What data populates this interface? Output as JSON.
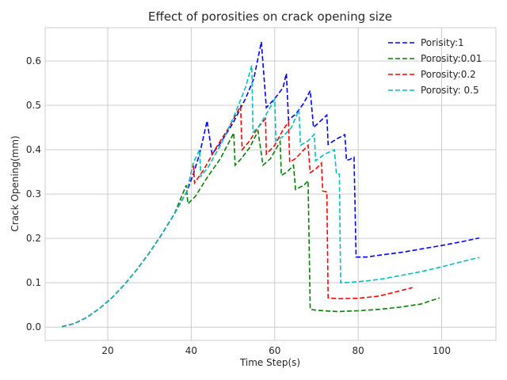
{
  "chart_data": {
    "type": "line",
    "title": "Effect of porosities on crack opening size",
    "xlabel": "Time Step(s)",
    "ylabel": "Crack Opening(mm)",
    "xlim": [
      5,
      113
    ],
    "ylim": [
      -0.03,
      0.675
    ],
    "xticks": [
      20,
      40,
      60,
      80,
      100
    ],
    "yticks": [
      0.0,
      0.1,
      0.2,
      0.3,
      0.4,
      0.5,
      0.6
    ],
    "grid": true,
    "legend_position": "top-right",
    "series": [
      {
        "name": "Porisity:1",
        "color": "#0000ff",
        "points": [
          [
            9,
            0.001
          ],
          [
            12,
            0.008
          ],
          [
            15,
            0.022
          ],
          [
            18,
            0.042
          ],
          [
            21,
            0.066
          ],
          [
            24,
            0.096
          ],
          [
            27,
            0.13
          ],
          [
            30,
            0.168
          ],
          [
            33,
            0.21
          ],
          [
            36,
            0.256
          ],
          [
            39,
            0.306
          ],
          [
            40.5,
            0.345
          ],
          [
            42,
            0.39
          ],
          [
            43.8,
            0.465
          ],
          [
            45,
            0.39
          ],
          [
            47,
            0.415
          ],
          [
            50,
            0.46
          ],
          [
            53,
            0.515
          ],
          [
            55,
            0.56
          ],
          [
            56.8,
            0.643
          ],
          [
            58,
            0.495
          ],
          [
            60,
            0.515
          ],
          [
            62,
            0.54
          ],
          [
            62.8,
            0.572
          ],
          [
            63.3,
            0.467
          ],
          [
            65,
            0.48
          ],
          [
            67,
            0.505
          ],
          [
            68.5,
            0.533
          ],
          [
            69.3,
            0.45
          ],
          [
            71,
            0.465
          ],
          [
            72.5,
            0.478
          ],
          [
            72.8,
            0.412
          ],
          [
            75,
            0.425
          ],
          [
            76.8,
            0.434
          ],
          [
            77.2,
            0.376
          ],
          [
            78,
            0.378
          ],
          [
            79,
            0.383
          ],
          [
            79.5,
            0.158
          ],
          [
            82,
            0.158
          ],
          [
            85,
            0.162
          ],
          [
            90,
            0.168
          ],
          [
            95,
            0.176
          ],
          [
            100,
            0.184
          ],
          [
            105,
            0.193
          ],
          [
            109,
            0.201
          ]
        ]
      },
      {
        "name": "Porosity:0.01",
        "color": "#008000",
        "points": [
          [
            9,
            0.001
          ],
          [
            12,
            0.008
          ],
          [
            15,
            0.022
          ],
          [
            18,
            0.042
          ],
          [
            21,
            0.066
          ],
          [
            24,
            0.096
          ],
          [
            27,
            0.13
          ],
          [
            30,
            0.168
          ],
          [
            33,
            0.21
          ],
          [
            36,
            0.256
          ],
          [
            38.8,
            0.32
          ],
          [
            39.2,
            0.278
          ],
          [
            41,
            0.295
          ],
          [
            44,
            0.34
          ],
          [
            47,
            0.38
          ],
          [
            50.2,
            0.438
          ],
          [
            50.5,
            0.365
          ],
          [
            52,
            0.38
          ],
          [
            54,
            0.405
          ],
          [
            56,
            0.442
          ],
          [
            57.2,
            0.365
          ],
          [
            59,
            0.38
          ],
          [
            61.3,
            0.418
          ],
          [
            61.6,
            0.342
          ],
          [
            63,
            0.35
          ],
          [
            64.5,
            0.365
          ],
          [
            65,
            0.31
          ],
          [
            67,
            0.32
          ],
          [
            68,
            0.33
          ],
          [
            68.5,
            0.04
          ],
          [
            70,
            0.038
          ],
          [
            75,
            0.035
          ],
          [
            80,
            0.037
          ],
          [
            85,
            0.04
          ],
          [
            90,
            0.045
          ],
          [
            95,
            0.052
          ],
          [
            99.5,
            0.066
          ]
        ]
      },
      {
        "name": "Porosity:0.2",
        "color": "#ff0000",
        "points": [
          [
            9,
            0.001
          ],
          [
            12,
            0.008
          ],
          [
            15,
            0.022
          ],
          [
            18,
            0.042
          ],
          [
            21,
            0.066
          ],
          [
            24,
            0.096
          ],
          [
            27,
            0.13
          ],
          [
            30,
            0.168
          ],
          [
            33,
            0.21
          ],
          [
            36,
            0.256
          ],
          [
            39,
            0.306
          ],
          [
            40.5,
            0.37
          ],
          [
            40.8,
            0.325
          ],
          [
            43,
            0.355
          ],
          [
            46,
            0.405
          ],
          [
            49,
            0.45
          ],
          [
            51.8,
            0.498
          ],
          [
            52.2,
            0.4
          ],
          [
            54,
            0.42
          ],
          [
            56,
            0.45
          ],
          [
            57.8,
            0.47
          ],
          [
            58,
            0.39
          ],
          [
            60,
            0.41
          ],
          [
            62,
            0.445
          ],
          [
            63.3,
            0.462
          ],
          [
            63.6,
            0.372
          ],
          [
            65,
            0.38
          ],
          [
            67,
            0.4
          ],
          [
            68,
            0.41
          ],
          [
            68.5,
            0.348
          ],
          [
            70,
            0.358
          ],
          [
            71.2,
            0.37
          ],
          [
            71.5,
            0.307
          ],
          [
            72.5,
            0.305
          ],
          [
            72.8,
            0.066
          ],
          [
            75,
            0.064
          ],
          [
            80,
            0.065
          ],
          [
            85,
            0.07
          ],
          [
            88,
            0.077
          ],
          [
            93,
            0.089
          ]
        ]
      },
      {
        "name": "Porosity: 0.5",
        "color": "#00bfbf",
        "points": [
          [
            9,
            0.001
          ],
          [
            12,
            0.008
          ],
          [
            15,
            0.022
          ],
          [
            18,
            0.042
          ],
          [
            21,
            0.066
          ],
          [
            24,
            0.096
          ],
          [
            27,
            0.13
          ],
          [
            30,
            0.168
          ],
          [
            33,
            0.21
          ],
          [
            36,
            0.256
          ],
          [
            39,
            0.306
          ],
          [
            40.5,
            0.37
          ],
          [
            42,
            0.4
          ],
          [
            42.3,
            0.34
          ],
          [
            44,
            0.36
          ],
          [
            47,
            0.41
          ],
          [
            50,
            0.47
          ],
          [
            53,
            0.54
          ],
          [
            54.5,
            0.59
          ],
          [
            54.8,
            0.44
          ],
          [
            56,
            0.45
          ],
          [
            58,
            0.48
          ],
          [
            60,
            0.514
          ],
          [
            60.3,
            0.42
          ],
          [
            62,
            0.43
          ],
          [
            64,
            0.45
          ],
          [
            65.8,
            0.49
          ],
          [
            66.2,
            0.41
          ],
          [
            68,
            0.42
          ],
          [
            69.5,
            0.435
          ],
          [
            69.8,
            0.375
          ],
          [
            72,
            0.39
          ],
          [
            74.3,
            0.4
          ],
          [
            74.8,
            0.345
          ],
          [
            75.5,
            0.345
          ],
          [
            75.8,
            0.1
          ],
          [
            78,
            0.101
          ],
          [
            82,
            0.104
          ],
          [
            86,
            0.109
          ],
          [
            90,
            0.116
          ],
          [
            95,
            0.125
          ],
          [
            100,
            0.136
          ],
          [
            105,
            0.148
          ],
          [
            109,
            0.157
          ]
        ]
      }
    ]
  }
}
